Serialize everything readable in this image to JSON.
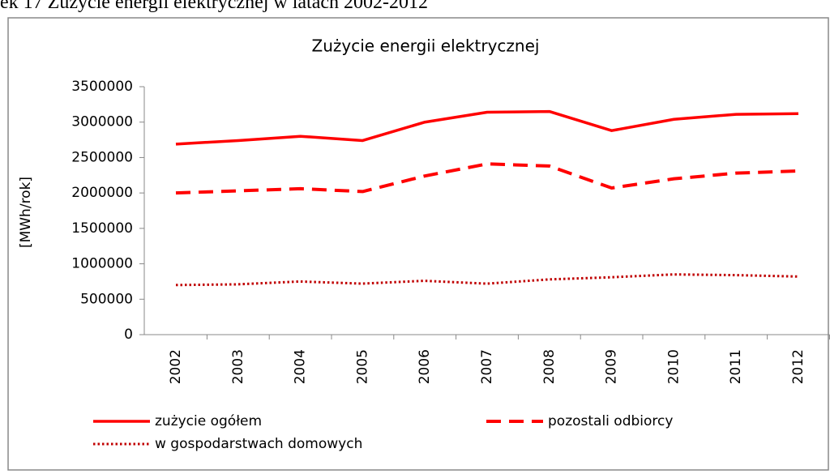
{
  "caption": "ek 17 Zużycie energii elektrycznej w latach 2002-2012",
  "chart_data": {
    "type": "line",
    "title": "Zużycie energii elektrycznej",
    "y_label": "[MWh/rok]",
    "categories": [
      "2002",
      "2003",
      "2004",
      "2005",
      "2006",
      "2007",
      "2008",
      "2009",
      "2010",
      "2011",
      "2012"
    ],
    "series": [
      {
        "name": "zużycie ogółem",
        "color": "#ff0000",
        "style": "solid",
        "values": [
          2690000,
          2740000,
          2800000,
          2740000,
          3000000,
          3140000,
          3150000,
          2880000,
          3040000,
          3110000,
          3120000
        ]
      },
      {
        "name": "pozostali odbiorcy",
        "color": "#ff0000",
        "style": "dashed",
        "values": [
          2000000,
          2030000,
          2060000,
          2020000,
          2240000,
          2410000,
          2380000,
          2070000,
          2200000,
          2280000,
          2310000
        ]
      },
      {
        "name": "w gospodarstwach domowych",
        "color": "#c00000",
        "style": "dotted",
        "values": [
          700000,
          710000,
          750000,
          720000,
          760000,
          720000,
          780000,
          810000,
          850000,
          840000,
          820000
        ]
      }
    ],
    "ylim": [
      0,
      3500000
    ],
    "yticks": [
      0,
      500000,
      1000000,
      1500000,
      2000000,
      2500000,
      3000000,
      3500000
    ],
    "grid": false
  }
}
